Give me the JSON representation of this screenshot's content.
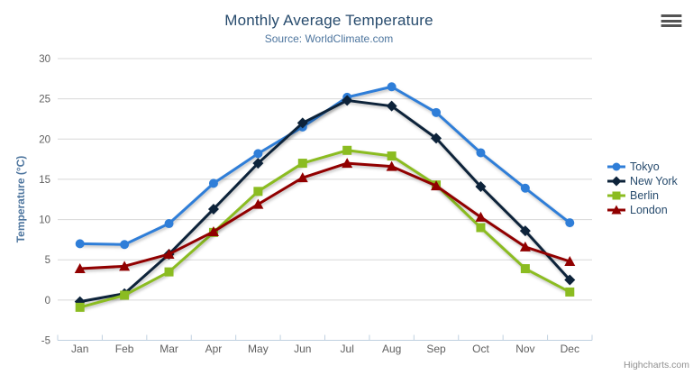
{
  "header": {
    "title": "Monthly Average Temperature",
    "subtitle": "Source: WorldClimate.com"
  },
  "icons": {
    "menu": "hamburger-icon"
  },
  "credits": {
    "label": "Highcharts.com"
  },
  "colors": {
    "grid": "#d8d8d8",
    "axis_line": "#c0d0e0",
    "title": "#274b6d",
    "subtitle": "#4d759e",
    "axis_label": "#606060",
    "y_axis_title": "#4d759e",
    "legend_text": "#274b6d",
    "credits_text": "#909090",
    "menu_icon": "#545454"
  },
  "chart_data": {
    "type": "line",
    "title": "Monthly Average Temperature",
    "subtitle": "Source: WorldClimate.com",
    "categories": [
      "Jan",
      "Feb",
      "Mar",
      "Apr",
      "May",
      "Jun",
      "Jul",
      "Aug",
      "Sep",
      "Oct",
      "Nov",
      "Dec"
    ],
    "series": [
      {
        "name": "Tokyo",
        "color": "#2f7ed8",
        "marker": "circle",
        "values": [
          7.0,
          6.9,
          9.5,
          14.5,
          18.2,
          21.5,
          25.2,
          26.5,
          23.3,
          18.3,
          13.9,
          9.6
        ]
      },
      {
        "name": "New York",
        "color": "#0d233a",
        "marker": "diamond",
        "values": [
          -0.2,
          0.8,
          5.7,
          11.3,
          17.0,
          22.0,
          24.8,
          24.1,
          20.1,
          14.1,
          8.6,
          2.5
        ]
      },
      {
        "name": "Berlin",
        "color": "#8bbc21",
        "marker": "square",
        "values": [
          -0.9,
          0.6,
          3.5,
          8.4,
          13.5,
          17.0,
          18.6,
          17.9,
          14.3,
          9.0,
          3.9,
          1.0
        ]
      },
      {
        "name": "London",
        "color": "#910000",
        "marker": "triangle",
        "values": [
          3.9,
          4.2,
          5.7,
          8.5,
          11.9,
          15.2,
          17.0,
          16.6,
          14.2,
          10.3,
          6.6,
          4.8
        ]
      }
    ],
    "xlabel": "",
    "ylabel": "Temperature (°C)",
    "ylim": [
      -5,
      30
    ],
    "yticks": [
      -5,
      0,
      5,
      10,
      15,
      20,
      25,
      30
    ],
    "grid": true,
    "legend_position": "right"
  }
}
